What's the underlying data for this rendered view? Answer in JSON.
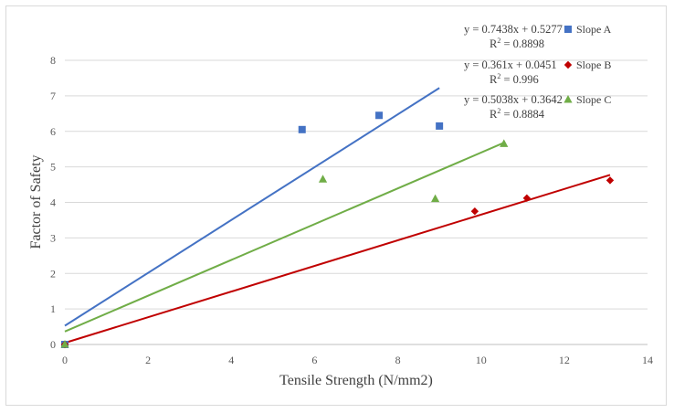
{
  "chart_data": {
    "type": "scatter",
    "xlabel": "Tensile Strength (N/mm2)",
    "ylabel": "Factor of Safety",
    "xlim": [
      0,
      14
    ],
    "ylim": [
      0,
      8
    ],
    "x_ticks": [
      0,
      2,
      4,
      6,
      8,
      10,
      12,
      14
    ],
    "y_ticks": [
      0,
      1,
      2,
      3,
      4,
      5,
      6,
      7,
      8
    ],
    "grid": "horizontal",
    "legend_position": "top-right",
    "series": [
      {
        "name": "Slope A",
        "color": "#4472C4",
        "marker": "square",
        "points": [
          [
            0,
            0
          ],
          [
            5.7,
            6.05
          ],
          [
            7.55,
            6.45
          ],
          [
            9.0,
            6.15
          ]
        ],
        "trendline": {
          "slope": 0.7438,
          "intercept": 0.5277,
          "x_range": [
            0,
            9.0
          ]
        },
        "equation": "y = 0.7438x + 0.5277",
        "r2_label": "R",
        "r2_value": " = 0.8898"
      },
      {
        "name": "Slope B",
        "color": "#C00000",
        "marker": "diamond",
        "points": [
          [
            0,
            0
          ],
          [
            9.85,
            3.75
          ],
          [
            11.1,
            4.12
          ],
          [
            13.1,
            4.62
          ]
        ],
        "trendline": {
          "slope": 0.361,
          "intercept": 0.0451,
          "x_range": [
            0,
            13.1
          ]
        },
        "equation": "y = 0.361x + 0.0451",
        "r2_label": "R",
        "r2_value": " = 0.996"
      },
      {
        "name": "Slope C",
        "color": "#70AD47",
        "marker": "triangle",
        "points": [
          [
            0,
            0
          ],
          [
            6.2,
            4.65
          ],
          [
            8.9,
            4.1
          ],
          [
            10.55,
            5.65
          ]
        ],
        "trendline": {
          "slope": 0.5038,
          "intercept": 0.3642,
          "x_range": [
            0,
            10.55
          ]
        },
        "equation": "y = 0.5038x + 0.3642",
        "r2_label": "R",
        "r2_value": " = 0.8884"
      }
    ]
  }
}
